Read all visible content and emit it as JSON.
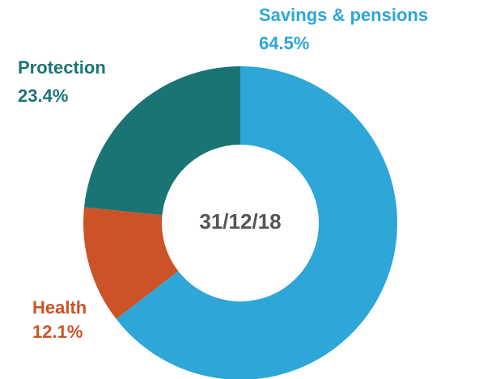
{
  "chart_data": {
    "type": "donut",
    "center_label": "31/12/18",
    "categories": [
      "Savings & pensions",
      "Health",
      "Protection"
    ],
    "values": [
      64.5,
      12.1,
      23.4
    ],
    "value_labels": [
      "64.5%",
      "12.1%",
      "23.4%"
    ],
    "colors": [
      "#2ea6d7",
      "#cc5327",
      "#1b7474"
    ]
  }
}
